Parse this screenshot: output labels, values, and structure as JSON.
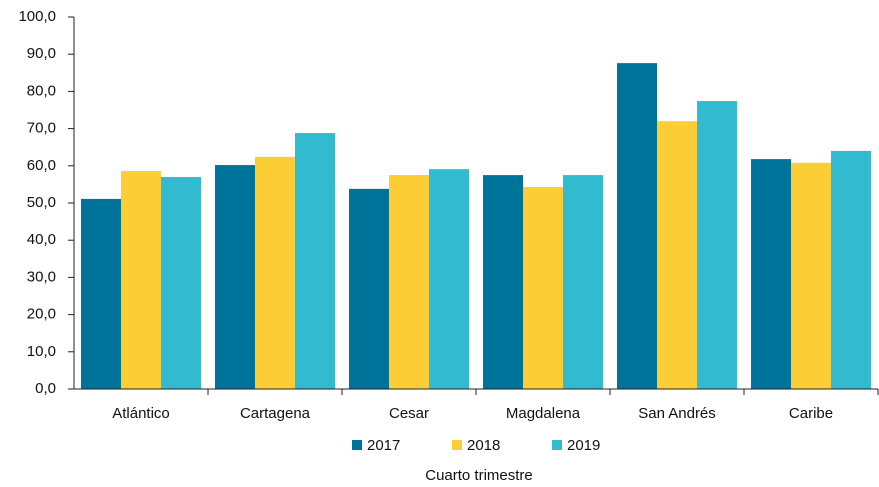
{
  "chart_data": {
    "type": "bar",
    "x_label": "Cuarto trimestre",
    "categories": [
      "Atlántico",
      "Cartagena",
      "Cesar",
      "Magdalena",
      "San Andrés",
      "Caribe"
    ],
    "series": [
      {
        "name": "2017",
        "color": "#00739b",
        "values": [
          51.1,
          60.2,
          53.8,
          57.5,
          87.6,
          61.8
        ]
      },
      {
        "name": "2018",
        "color": "#fdcd35",
        "values": [
          58.6,
          62.4,
          57.5,
          54.3,
          72.0,
          60.8
        ]
      },
      {
        "name": "2019",
        "color": "#31bad0",
        "values": [
          57.0,
          68.8,
          59.1,
          57.5,
          77.4,
          64.0
        ]
      }
    ],
    "ylim": [
      0,
      100
    ],
    "yticks": [
      {
        "value": 0,
        "label": "0,0"
      },
      {
        "value": 10,
        "label": "10,0"
      },
      {
        "value": 20,
        "label": "20,0"
      },
      {
        "value": 30,
        "label": "30,0"
      },
      {
        "value": 40,
        "label": "40,0"
      },
      {
        "value": 50,
        "label": "50,0"
      },
      {
        "value": 60,
        "label": "60,0"
      },
      {
        "value": 70,
        "label": "70,0"
      },
      {
        "value": 80,
        "label": "80,0"
      },
      {
        "value": 90,
        "label": "90,0"
      },
      {
        "value": 100,
        "label": "100,0"
      }
    ],
    "grid": false,
    "legend": "bottom"
  }
}
